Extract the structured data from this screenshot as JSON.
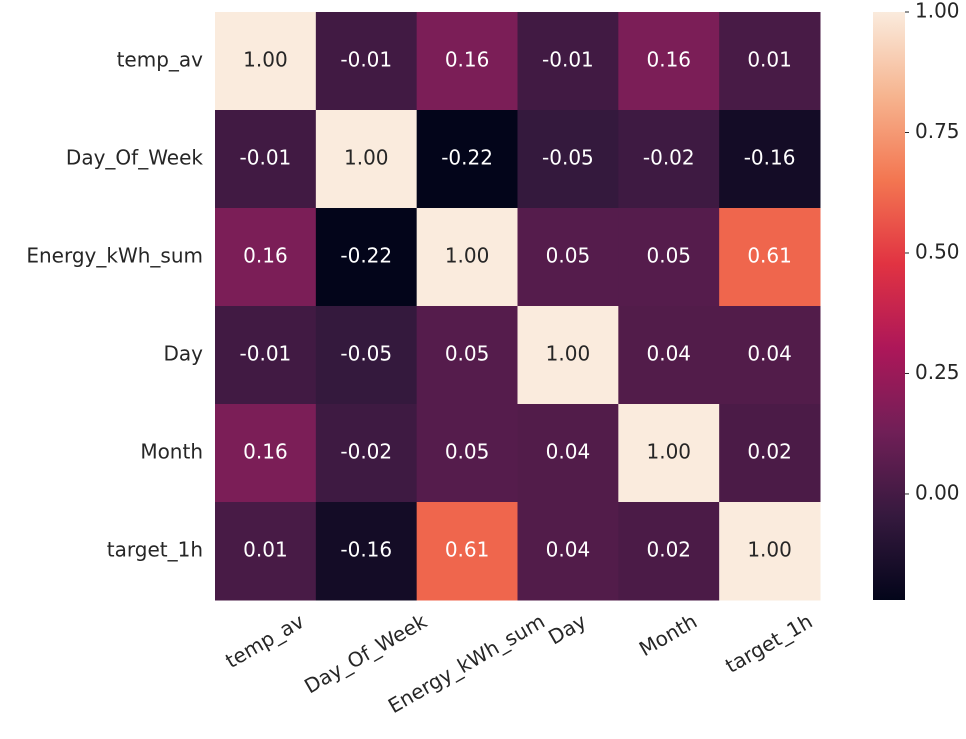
{
  "chart_data": {
    "type": "heatmap",
    "x_categories": [
      "temp_av",
      "Day_Of_Week",
      "Energy_kWh_sum",
      "Day",
      "Month",
      "target_1h"
    ],
    "y_categories": [
      "temp_av",
      "Day_Of_Week",
      "Energy_kWh_sum",
      "Day",
      "Month",
      "target_1h"
    ],
    "values": [
      [
        1,
        -0.01,
        0.16,
        -0.01,
        0.16,
        0.01
      ],
      [
        -0.01,
        1,
        -0.22,
        -0.05,
        -0.02,
        -0.16
      ],
      [
        0.16,
        -0.22,
        1,
        0.05,
        0.05,
        0.61
      ],
      [
        -0.01,
        -0.05,
        0.05,
        1,
        0.04,
        0.04
      ],
      [
        0.16,
        -0.02,
        0.05,
        0.04,
        1,
        0.02
      ],
      [
        0.01,
        -0.16,
        0.61,
        0.04,
        0.02,
        1
      ]
    ],
    "value_labels": [
      [
        "1.00",
        "-0.01",
        "0.16",
        "-0.01",
        "0.16",
        "0.01"
      ],
      [
        "-0.01",
        "1.00",
        "-0.22",
        "-0.05",
        "-0.02",
        "-0.16"
      ],
      [
        "0.16",
        "-0.22",
        "1.00",
        "0.05",
        "0.05",
        "0.61"
      ],
      [
        "-0.01",
        "-0.05",
        "0.05",
        "1.00",
        "0.04",
        "0.04"
      ],
      [
        "0.16",
        "-0.02",
        "0.05",
        "0.04",
        "1.00",
        "0.02"
      ],
      [
        "0.01",
        "-0.16",
        "0.61",
        "0.04",
        "0.02",
        "1.00"
      ]
    ],
    "clim": [
      -0.22,
      1
    ],
    "cticks": [
      {
        "value": 0,
        "label": "0.00"
      },
      0.25,
      {
        "value": 0.5,
        "label": "0.50"
      },
      0.75,
      {
        "value": 1,
        "label": "1.00"
      }
    ],
    "colorscale": [
      "#03051a",
      "#35193e",
      "#701f57",
      "#ad1759",
      "#e13342",
      "#f37651",
      "#f6b48f",
      "#faebdd"
    ]
  }
}
